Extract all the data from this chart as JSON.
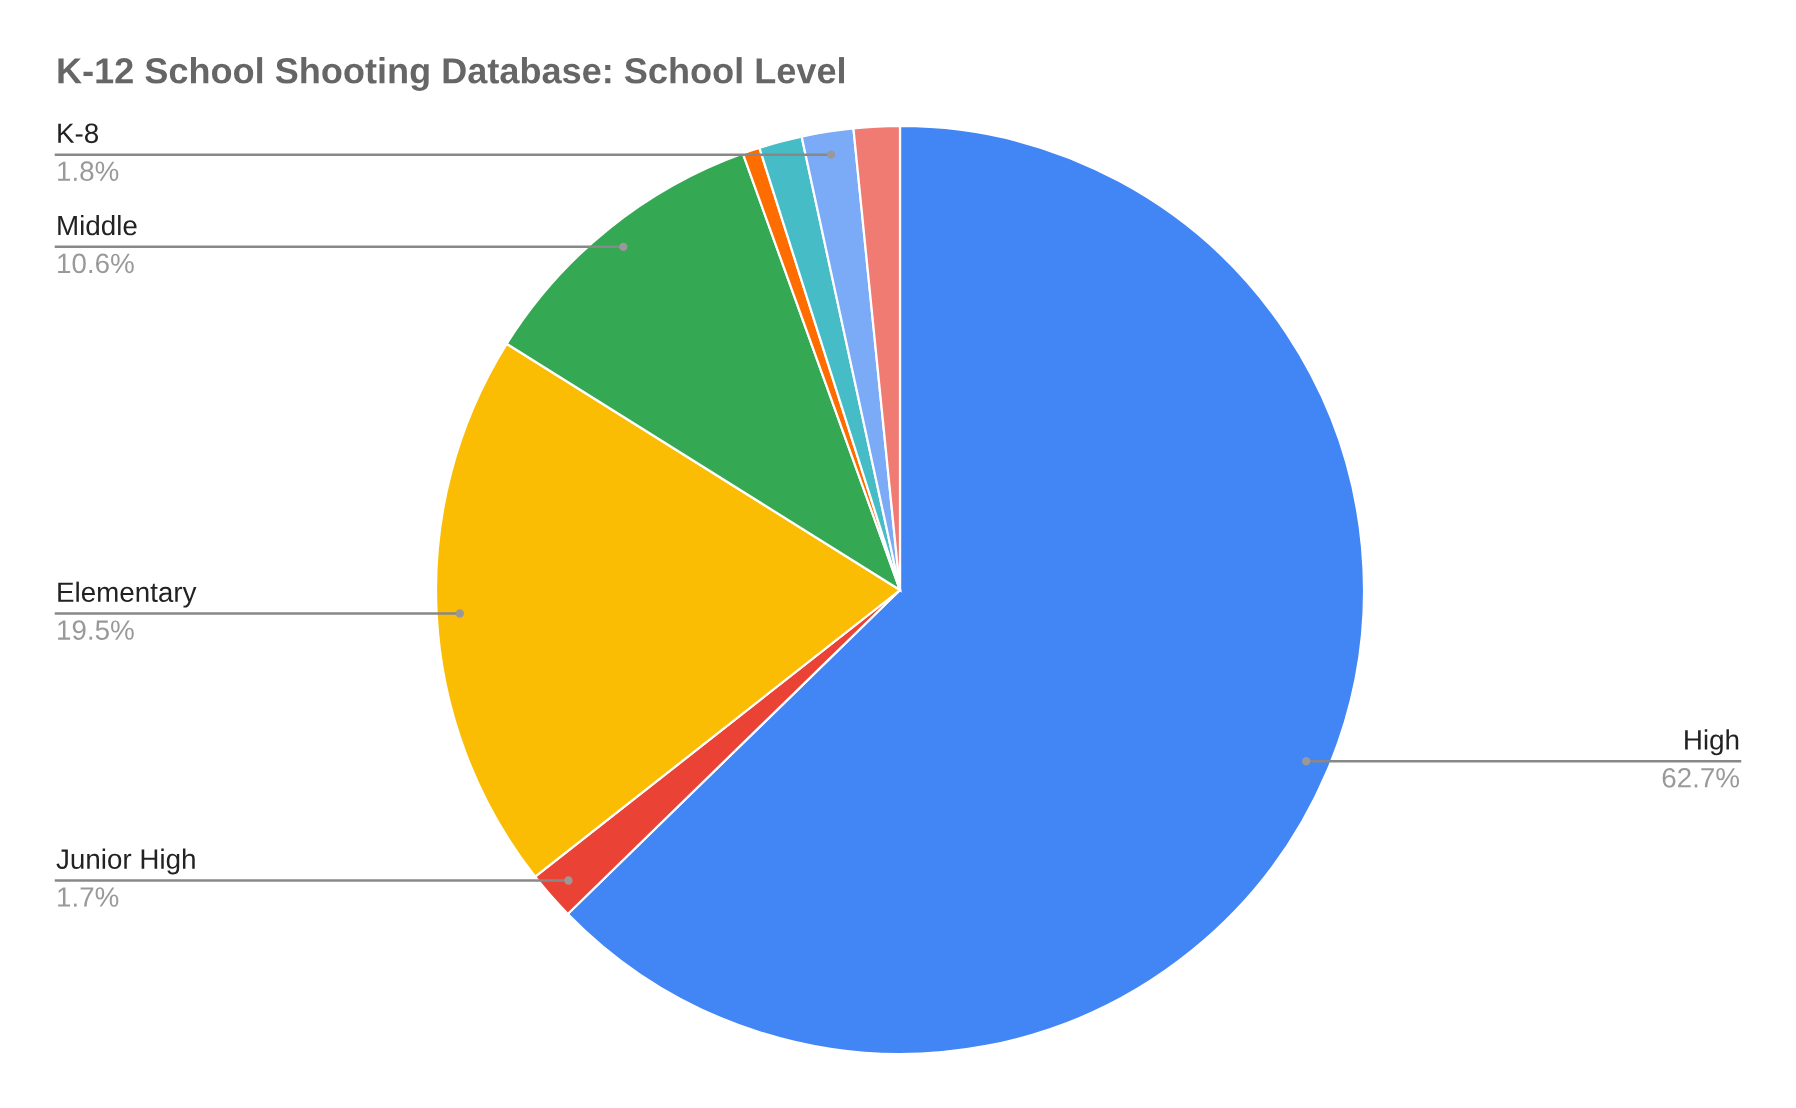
{
  "chart_data": {
    "type": "pie",
    "title": "K-12 School Shooting Database: School Level",
    "categories": [
      "High",
      "Junior High",
      "Elementary",
      "Middle",
      null,
      null,
      "K-8",
      null
    ],
    "values": [
      62.7,
      1.7,
      19.5,
      10.6,
      0.6,
      1.5,
      1.8,
      1.6
    ],
    "value_labels": [
      "62.7%",
      "1.7%",
      "19.5%",
      "10.6%",
      null,
      null,
      "1.8%",
      null
    ],
    "colors": [
      "#4285f4",
      "#ea4335",
      "#fbbc04",
      "#34a853",
      "#ff6d01",
      "#46bdc6",
      "#7baaf7",
      "#f07b72"
    ],
    "legend": false
  }
}
